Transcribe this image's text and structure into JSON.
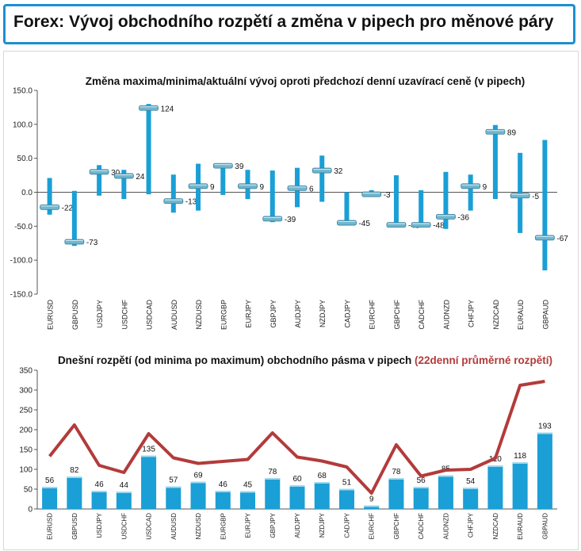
{
  "header": {
    "title": "Forex: Vývoj obchodního rozpětí a změna v pipech pro měnové páry"
  },
  "chart_data": [
    {
      "type": "bar",
      "subtype": "range-with-marker",
      "title": "Změna maxima/minima/aktuální vývoj oproti předchozí denní uzavírací ceně (v pipech)",
      "ylim": [
        -150,
        150
      ],
      "yticks": [
        "150.0",
        "100.0",
        "50.0",
        "0.0",
        "-50.0",
        "-100.0",
        "-150.0"
      ],
      "grid": false,
      "categories": [
        "EURUSD",
        "GBPUSD",
        "USDJPY",
        "USDCHF",
        "USDCAD",
        "AUDUSD",
        "NZDUSD",
        "EURGBP",
        "EURJPY",
        "GBPJPY",
        "AUDJPY",
        "NZDJPY",
        "CADJPY",
        "EURCHF",
        "GBPCHF",
        "CADCHF",
        "AUDNZD",
        "CHFJPY",
        "NZDCAD",
        "EURAUD",
        "GBPAUD"
      ],
      "high": [
        21,
        2,
        40,
        33,
        130,
        26,
        42,
        39,
        33,
        32,
        36,
        54,
        0,
        3,
        25,
        3,
        30,
        26,
        99,
        58,
        77
      ],
      "low": [
        -33,
        -79,
        -5,
        -10,
        -3,
        -30,
        -27,
        -4,
        -10,
        -44,
        -22,
        -14,
        -48,
        -7,
        -52,
        -51,
        -54,
        -27,
        -10,
        -60,
        -115
      ],
      "current": [
        -22,
        -73,
        30,
        24,
        124,
        -13,
        9,
        39,
        9,
        -39,
        6,
        32,
        -45,
        -3,
        -48,
        -48,
        -36,
        9,
        89,
        -5,
        -67
      ],
      "labels": [
        "-22",
        "-73",
        "30",
        "24",
        "124",
        "-13",
        "9",
        "39",
        "9",
        "-39",
        "6",
        "32",
        "-45",
        "-3",
        "-48",
        "-48",
        "-36",
        "9",
        "89",
        "-5",
        "-67"
      ]
    },
    {
      "type": "bar",
      "title": "Dnešní rozpětí (od minima po maximum) obchodního pásma v pipech",
      "title_suffix": "(22denní průměrné rozpětí)",
      "ylim": [
        0,
        350
      ],
      "yticks": [
        "350",
        "300",
        "250",
        "200",
        "150",
        "100",
        "50",
        "0"
      ],
      "grid": false,
      "categories": [
        "EURUSD",
        "GBPUSD",
        "USDJPY",
        "USDCHF",
        "USDCAD",
        "AUDUSD",
        "NZDUSD",
        "EURGBP",
        "EURJPY",
        "GBPJPY",
        "AUDJPY",
        "NZDJPY",
        "CADJPY",
        "EURCHF",
        "GBPCHF",
        "CADCHF",
        "AUDNZD",
        "CHFJPY",
        "NZDCAD",
        "EURAUD",
        "GBPAUD"
      ],
      "series": [
        {
          "type": "bar",
          "values": [
            56,
            82,
            46,
            44,
            135,
            57,
            69,
            46,
            45,
            78,
            60,
            68,
            51,
            9,
            78,
            56,
            85,
            54,
            110,
            118,
            193
          ],
          "labels": [
            "56",
            "82",
            "46",
            "44",
            "135",
            "57",
            "69",
            "46",
            "45",
            "78",
            "60",
            "68",
            "51",
            "9",
            "78",
            "56",
            "85",
            "54",
            "110",
            "118",
            "193"
          ]
        },
        {
          "type": "line",
          "values": [
            133,
            212,
            110,
            92,
            190,
            129,
            115,
            120,
            125,
            192,
            131,
            121,
            106,
            40,
            162,
            83,
            98,
            100,
            128,
            312,
            322
          ]
        }
      ]
    }
  ],
  "colors": {
    "bar": "#1a9fd6",
    "marker": "#6fb6cf",
    "line": "#b33b3b",
    "header_border": "#1e8fd0",
    "title_suffix": "#b33b3b"
  }
}
